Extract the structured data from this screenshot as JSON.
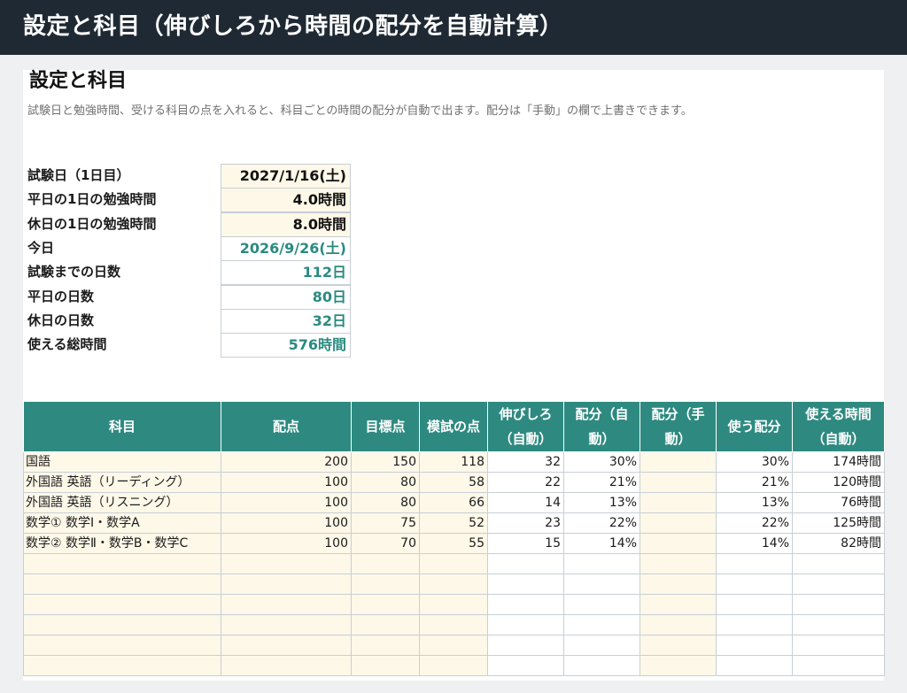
{
  "window": {
    "title": "設定と科目（伸びしろから時間の配分を自動計算）"
  },
  "sheet": {
    "heading": "設定と科目",
    "description": "試験日と勉強時間、受ける科目の点を入れると、科目ごとの時間の配分が自動で出ます。配分は「手動」の欄で上書きできます。"
  },
  "settings": [
    {
      "label": "試験日（1日目）",
      "value": "2027/1/16(土)",
      "kind": "input"
    },
    {
      "label": "平日の1日の勉強時間",
      "value": "4.0時間",
      "kind": "input"
    },
    {
      "label": "休日の1日の勉強時間",
      "value": "8.0時間",
      "kind": "input"
    },
    {
      "label": "今日",
      "value": "2026/9/26(土)",
      "kind": "auto"
    },
    {
      "label": "試験までの日数",
      "value": "112日",
      "kind": "auto"
    },
    {
      "label": "平日の日数",
      "value": "80日",
      "kind": "auto"
    },
    {
      "label": "休日の日数",
      "value": "32日",
      "kind": "auto"
    },
    {
      "label": "使える総時間",
      "value": "576時間",
      "kind": "auto"
    }
  ],
  "table": {
    "headers": [
      "科目",
      "配点",
      "目標点",
      "模試の点",
      "伸びしろ（自動）",
      "配分（自動）",
      "配分（手動）",
      "使う配分",
      "使える時間（自動）"
    ],
    "rows": [
      [
        "国語",
        "200",
        "150",
        "118",
        "32",
        "30%",
        "",
        "30%",
        "174時間"
      ],
      [
        "外国語 英語（リーディング）",
        "100",
        "80",
        "58",
        "22",
        "21%",
        "",
        "21%",
        "120時間"
      ],
      [
        "外国語 英語（リスニング）",
        "100",
        "80",
        "66",
        "14",
        "13%",
        "",
        "13%",
        "76時間"
      ],
      [
        "数学① 数学Ⅰ・数学A",
        "100",
        "75",
        "52",
        "23",
        "22%",
        "",
        "22%",
        "125時間"
      ],
      [
        "数学② 数学Ⅱ・数学B・数学C",
        "100",
        "70",
        "55",
        "15",
        "14%",
        "",
        "14%",
        "82時間"
      ],
      [
        "",
        "",
        "",
        "",
        "",
        "",
        "",
        "",
        ""
      ],
      [
        "",
        "",
        "",
        "",
        "",
        "",
        "",
        "",
        ""
      ],
      [
        "",
        "",
        "",
        "",
        "",
        "",
        "",
        "",
        ""
      ],
      [
        "",
        "",
        "",
        "",
        "",
        "",
        "",
        "",
        ""
      ],
      [
        "",
        "",
        "",
        "",
        "",
        "",
        "",
        "",
        ""
      ],
      [
        "",
        "",
        "",
        "",
        "",
        "",
        "",
        "",
        ""
      ]
    ]
  },
  "colors": {
    "titlebar": "#1f2933",
    "header_teal": "#2e8a80",
    "auto_value_text": "#2a8a80",
    "input_cell_bg": "#fdf8e8"
  }
}
